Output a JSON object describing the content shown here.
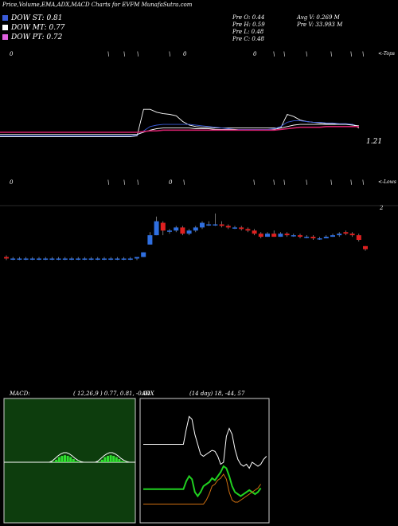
{
  "header": {
    "title": "Price,Volume,EMA,ADX,MACD Charts for EVFM MunafaSutra.com"
  },
  "dow": [
    {
      "label": "DOW ST: 0.81",
      "color": "#3a5bd9"
    },
    {
      "label": "DOW MT: 0.77",
      "color": "#ffffff"
    },
    {
      "label": "DOW PT: 0.72",
      "color": "#e060e0"
    }
  ],
  "prev": {
    "open": "Pre  O: 0.44",
    "high": "Pre  H: 0.59",
    "low": "Pre  L: 0.48",
    "close": "Pre  C: 0.48"
  },
  "avg": {
    "avg_vol": "Avg V: 0.269 M",
    "pre_vol": "Pre  V: 33.993 M"
  },
  "ema_panel": {
    "top_label": "<-Tops",
    "bottom_label": "<-Lows",
    "value_label": "1.21",
    "top_marks": [
      "0",
      "\\",
      "\\",
      "\\",
      "\\",
      "0",
      "0",
      "\\",
      "\\",
      "\\",
      "\\",
      "\\",
      "\\"
    ],
    "bottom_marks": [
      "0",
      "\\",
      "\\",
      "\\",
      "0",
      "\\",
      "\\",
      "\\",
      "\\",
      "\\",
      "\\",
      "\\",
      "\\"
    ]
  },
  "price_panel": {
    "axis_label": "2"
  },
  "macd": {
    "label": "MACD:",
    "params": "( 12,26,9 ) 0.77,  0.81,  -0.04"
  },
  "adx": {
    "label": "ADX",
    "params": "(14  day) 18,  -44,  57"
  },
  "colors": {
    "bull": "#2f6fe0",
    "bear": "#e02020",
    "macd_bg": "#0d3d0d",
    "adx_bg": "#000000",
    "ema_red": "#d0206a"
  },
  "chart_data": [
    {
      "type": "candlestick",
      "name": "price",
      "candles": [
        {
          "o": 0.24,
          "h": 0.25,
          "l": 0.22,
          "c": 0.23
        },
        {
          "o": 0.23,
          "h": 0.24,
          "l": 0.22,
          "c": 0.23
        },
        {
          "o": 0.23,
          "h": 0.24,
          "l": 0.22,
          "c": 0.23
        },
        {
          "o": 0.23,
          "h": 0.24,
          "l": 0.22,
          "c": 0.23
        },
        {
          "o": 0.23,
          "h": 0.24,
          "l": 0.22,
          "c": 0.23
        },
        {
          "o": 0.23,
          "h": 0.24,
          "l": 0.22,
          "c": 0.23
        },
        {
          "o": 0.23,
          "h": 0.24,
          "l": 0.22,
          "c": 0.23
        },
        {
          "o": 0.23,
          "h": 0.24,
          "l": 0.22,
          "c": 0.23
        },
        {
          "o": 0.23,
          "h": 0.24,
          "l": 0.22,
          "c": 0.23
        },
        {
          "o": 0.23,
          "h": 0.24,
          "l": 0.22,
          "c": 0.23
        },
        {
          "o": 0.23,
          "h": 0.24,
          "l": 0.22,
          "c": 0.23
        },
        {
          "o": 0.23,
          "h": 0.24,
          "l": 0.22,
          "c": 0.23
        },
        {
          "o": 0.23,
          "h": 0.24,
          "l": 0.22,
          "c": 0.23
        },
        {
          "o": 0.23,
          "h": 0.24,
          "l": 0.22,
          "c": 0.23
        },
        {
          "o": 0.23,
          "h": 0.24,
          "l": 0.22,
          "c": 0.23
        },
        {
          "o": 0.23,
          "h": 0.24,
          "l": 0.22,
          "c": 0.23
        },
        {
          "o": 0.23,
          "h": 0.24,
          "l": 0.22,
          "c": 0.23
        },
        {
          "o": 0.23,
          "h": 0.24,
          "l": 0.22,
          "c": 0.23
        },
        {
          "o": 0.23,
          "h": 0.24,
          "l": 0.22,
          "c": 0.23
        },
        {
          "o": 0.23,
          "h": 0.24,
          "l": 0.22,
          "c": 0.23
        },
        {
          "o": 0.23,
          "h": 0.24,
          "l": 0.22,
          "c": 0.24
        },
        {
          "o": 0.24,
          "h": 0.27,
          "l": 0.24,
          "c": 0.27
        },
        {
          "o": 0.32,
          "h": 0.4,
          "l": 0.32,
          "c": 0.38
        },
        {
          "o": 0.38,
          "h": 0.5,
          "l": 0.38,
          "c": 0.47
        },
        {
          "o": 0.46,
          "h": 0.47,
          "l": 0.38,
          "c": 0.41
        },
        {
          "o": 0.41,
          "h": 0.42,
          "l": 0.39,
          "c": 0.41
        },
        {
          "o": 0.41,
          "h": 0.44,
          "l": 0.4,
          "c": 0.43
        },
        {
          "o": 0.43,
          "h": 0.44,
          "l": 0.38,
          "c": 0.39
        },
        {
          "o": 0.39,
          "h": 0.42,
          "l": 0.38,
          "c": 0.41
        },
        {
          "o": 0.41,
          "h": 0.44,
          "l": 0.4,
          "c": 0.43
        },
        {
          "o": 0.43,
          "h": 0.47,
          "l": 0.42,
          "c": 0.46
        },
        {
          "o": 0.45,
          "h": 0.47,
          "l": 0.44,
          "c": 0.45
        },
        {
          "o": 0.45,
          "h": 0.52,
          "l": 0.44,
          "c": 0.45
        },
        {
          "o": 0.45,
          "h": 0.47,
          "l": 0.43,
          "c": 0.44
        },
        {
          "o": 0.44,
          "h": 0.45,
          "l": 0.42,
          "c": 0.43
        },
        {
          "o": 0.43,
          "h": 0.44,
          "l": 0.42,
          "c": 0.43
        },
        {
          "o": 0.43,
          "h": 0.44,
          "l": 0.41,
          "c": 0.42
        },
        {
          "o": 0.42,
          "h": 0.43,
          "l": 0.4,
          "c": 0.41
        },
        {
          "o": 0.41,
          "h": 0.42,
          "l": 0.38,
          "c": 0.39
        },
        {
          "o": 0.39,
          "h": 0.4,
          "l": 0.36,
          "c": 0.37
        },
        {
          "o": 0.37,
          "h": 0.4,
          "l": 0.37,
          "c": 0.39
        },
        {
          "o": 0.39,
          "h": 0.41,
          "l": 0.37,
          "c": 0.37
        },
        {
          "o": 0.37,
          "h": 0.4,
          "l": 0.37,
          "c": 0.39
        },
        {
          "o": 0.39,
          "h": 0.4,
          "l": 0.37,
          "c": 0.38
        },
        {
          "o": 0.38,
          "h": 0.39,
          "l": 0.37,
          "c": 0.38
        },
        {
          "o": 0.38,
          "h": 0.39,
          "l": 0.36,
          "c": 0.37
        },
        {
          "o": 0.37,
          "h": 0.38,
          "l": 0.36,
          "c": 0.37
        },
        {
          "o": 0.37,
          "h": 0.38,
          "l": 0.35,
          "c": 0.36
        },
        {
          "o": 0.36,
          "h": 0.37,
          "l": 0.35,
          "c": 0.36
        },
        {
          "o": 0.36,
          "h": 0.38,
          "l": 0.36,
          "c": 0.37
        },
        {
          "o": 0.37,
          "h": 0.39,
          "l": 0.37,
          "c": 0.38
        },
        {
          "o": 0.38,
          "h": 0.4,
          "l": 0.37,
          "c": 0.39
        },
        {
          "o": 0.4,
          "h": 0.41,
          "l": 0.38,
          "c": 0.39
        },
        {
          "o": 0.39,
          "h": 0.4,
          "l": 0.37,
          "c": 0.38
        },
        {
          "o": 0.38,
          "h": 0.39,
          "l": 0.34,
          "c": 0.35
        },
        {
          "o": 0.31,
          "h": 0.31,
          "l": 0.28,
          "c": 0.29
        }
      ]
    },
    {
      "type": "line",
      "name": "ema",
      "series": [
        {
          "color": "#ffffff",
          "values": [
            0.24,
            0.24,
            0.24,
            0.24,
            0.24,
            0.24,
            0.24,
            0.24,
            0.24,
            0.24,
            0.24,
            0.24,
            0.24,
            0.24,
            0.24,
            0.24,
            0.24,
            0.24,
            0.24,
            0.24,
            0.24,
            0.25,
            0.62,
            0.62,
            0.58,
            0.56,
            0.55,
            0.53,
            0.45,
            0.4,
            0.38,
            0.37,
            0.37,
            0.36,
            0.36,
            0.36,
            0.36,
            0.36,
            0.36,
            0.36,
            0.36,
            0.36,
            0.36,
            0.36,
            0.55,
            0.52,
            0.47,
            0.45,
            0.44,
            0.43,
            0.42,
            0.42,
            0.41,
            0.41,
            0.41,
            0.36
          ]
        },
        {
          "color": "#3a5bd9",
          "values": [
            0.25,
            0.25,
            0.25,
            0.25,
            0.25,
            0.25,
            0.25,
            0.25,
            0.25,
            0.25,
            0.25,
            0.25,
            0.25,
            0.25,
            0.25,
            0.25,
            0.25,
            0.25,
            0.25,
            0.25,
            0.25,
            0.26,
            0.32,
            0.38,
            0.4,
            0.41,
            0.41,
            0.41,
            0.41,
            0.41,
            0.4,
            0.39,
            0.38,
            0.37,
            0.36,
            0.35,
            0.34,
            0.34,
            0.34,
            0.34,
            0.34,
            0.34,
            0.35,
            0.38,
            0.44,
            0.46,
            0.46,
            0.45,
            0.44,
            0.44,
            0.43,
            0.43,
            0.42,
            0.42,
            0.41,
            0.38
          ]
        },
        {
          "color": "#ffffff",
          "values": [
            0.27,
            0.27,
            0.27,
            0.27,
            0.27,
            0.27,
            0.27,
            0.27,
            0.27,
            0.27,
            0.27,
            0.27,
            0.27,
            0.27,
            0.27,
            0.27,
            0.27,
            0.27,
            0.27,
            0.27,
            0.27,
            0.27,
            0.3,
            0.33,
            0.35,
            0.36,
            0.36,
            0.36,
            0.36,
            0.36,
            0.35,
            0.35,
            0.35,
            0.34,
            0.34,
            0.34,
            0.34,
            0.33,
            0.33,
            0.33,
            0.33,
            0.33,
            0.34,
            0.36,
            0.38,
            0.4,
            0.41,
            0.41,
            0.41,
            0.41,
            0.41,
            0.41,
            0.41,
            0.41,
            0.4,
            0.39
          ]
        },
        {
          "color": "#d0206a",
          "values": [
            0.3,
            0.3,
            0.3,
            0.3,
            0.3,
            0.3,
            0.3,
            0.3,
            0.3,
            0.3,
            0.3,
            0.3,
            0.3,
            0.3,
            0.3,
            0.3,
            0.3,
            0.3,
            0.3,
            0.3,
            0.3,
            0.3,
            0.31,
            0.32,
            0.32,
            0.33,
            0.33,
            0.33,
            0.33,
            0.33,
            0.33,
            0.33,
            0.33,
            0.33,
            0.33,
            0.33,
            0.33,
            0.33,
            0.33,
            0.33,
            0.33,
            0.33,
            0.33,
            0.34,
            0.35,
            0.36,
            0.37,
            0.37,
            0.37,
            0.37,
            0.38,
            0.38,
            0.38,
            0.38,
            0.38,
            0.38
          ]
        }
      ]
    },
    {
      "type": "line",
      "name": "macd",
      "series": [
        {
          "color": "#ffffff",
          "values": [
            0,
            0,
            0,
            0,
            0,
            0,
            0,
            0,
            0,
            0,
            0,
            0,
            0,
            0,
            0,
            0,
            0.2,
            0.6,
            1.0,
            1.3,
            1.5,
            1.5,
            1.3,
            1.0,
            0.6,
            0.3,
            0.1,
            0,
            0,
            0,
            0,
            0,
            0.2,
            0.6,
            1.0,
            1.3,
            1.5,
            1.5,
            1.3,
            1.0,
            0.6,
            0.3,
            0.1,
            0,
            0
          ]
        },
        {
          "color": "#30e030",
          "type": "bar",
          "values": [
            0,
            0,
            0,
            0,
            0,
            0,
            0,
            0,
            0,
            0,
            0,
            0,
            0,
            0,
            0,
            0,
            0.1,
            0.4,
            0.8,
            1.0,
            1.1,
            1.0,
            0.8,
            0.5,
            0.2,
            0.1,
            0,
            0,
            0,
            0,
            0,
            0,
            0.1,
            0.4,
            0.8,
            1.0,
            1.1,
            1.0,
            0.8,
            0.5,
            0.2,
            0.1,
            0,
            0,
            0
          ]
        }
      ]
    },
    {
      "type": "line",
      "name": "adx",
      "series": [
        {
          "color": "#ffffff",
          "values": [
            70,
            70,
            70,
            70,
            70,
            70,
            70,
            70,
            70,
            70,
            70,
            70,
            70,
            70,
            70,
            85,
            98,
            95,
            80,
            70,
            60,
            58,
            60,
            62,
            64,
            63,
            58,
            50,
            52,
            78,
            86,
            80,
            65,
            55,
            50,
            48,
            50,
            46,
            52,
            50,
            48,
            50,
            55,
            58
          ]
        },
        {
          "color": "#20d020",
          "values": [
            25,
            25,
            25,
            25,
            25,
            25,
            25,
            25,
            25,
            25,
            25,
            25,
            25,
            25,
            25,
            33,
            38,
            35,
            22,
            18,
            22,
            28,
            30,
            32,
            36,
            34,
            38,
            42,
            48,
            46,
            38,
            28,
            22,
            20,
            18,
            20,
            22,
            24,
            22,
            20,
            22,
            26
          ]
        },
        {
          "color": "#d07010",
          "values": [
            10,
            10,
            10,
            10,
            10,
            10,
            10,
            10,
            10,
            10,
            10,
            10,
            10,
            10,
            10,
            10,
            10,
            10,
            10,
            10,
            10,
            10,
            14,
            20,
            28,
            30,
            34,
            36,
            40,
            35,
            22,
            14,
            12,
            12,
            14,
            16,
            18,
            20,
            22,
            24,
            26,
            30
          ]
        }
      ]
    }
  ]
}
